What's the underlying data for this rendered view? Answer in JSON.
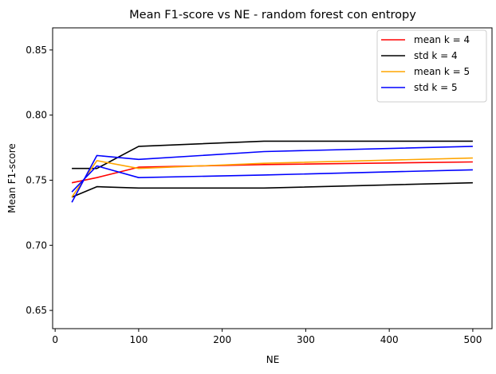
{
  "chart_data": {
    "type": "line",
    "title": "Mean F1-score vs NE - random forest con entropy",
    "xlabel": "NE",
    "ylabel": "Mean F1-score",
    "xlim": [
      -3,
      523
    ],
    "ylim": [
      0.636,
      0.867
    ],
    "xticks": [
      0,
      100,
      200,
      300,
      400,
      500
    ],
    "xtick_labels": [
      "0",
      "100",
      "200",
      "300",
      "400",
      "500"
    ],
    "yticks": [
      0.65,
      0.7,
      0.75,
      0.8,
      0.85
    ],
    "ytick_labels": [
      "0.65",
      "0.70",
      "0.75",
      "0.80",
      "0.85"
    ],
    "grid": false,
    "legend_position": "top-right",
    "x": [
      20,
      50,
      100,
      250,
      500
    ],
    "series": [
      {
        "name": "mean k = 4",
        "color": "#ff0000",
        "values": [
          0.748,
          0.752,
          0.76,
          0.762,
          0.764
        ]
      },
      {
        "name": "std k = 4",
        "color": "#000000",
        "values": [
          0.759,
          0.759,
          0.776,
          0.78,
          0.78
        ]
      },
      {
        "name": "std k = 4",
        "color": "#000000",
        "values": [
          0.737,
          0.745,
          0.744,
          0.744,
          0.748
        ],
        "legend": false
      },
      {
        "name": "mean k = 5",
        "color": "#ffa500",
        "values": [
          0.737,
          0.765,
          0.759,
          0.763,
          0.767
        ]
      },
      {
        "name": "std k = 5",
        "color": "#0000ff",
        "values": [
          0.733,
          0.769,
          0.766,
          0.772,
          0.776
        ]
      },
      {
        "name": "std k = 5",
        "color": "#0000ff",
        "values": [
          0.741,
          0.761,
          0.752,
          0.754,
          0.758
        ],
        "legend": false
      }
    ]
  }
}
